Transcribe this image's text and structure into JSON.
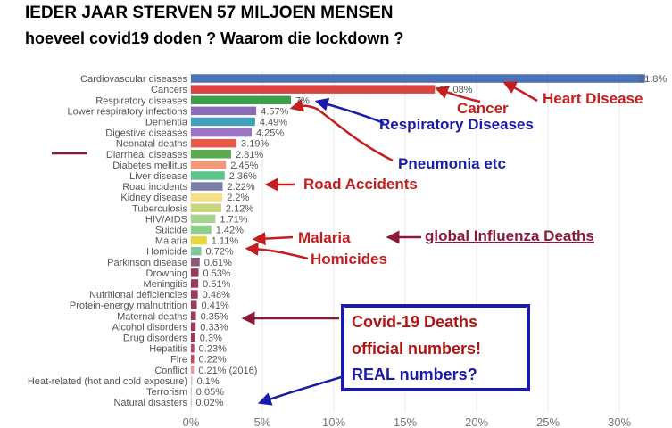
{
  "headline": {
    "line1": "IEDER JAAR STERVEN 57 MILJOEN MENSEN",
    "line2": "hoeveel covid19 doden ? Waarom die lockdown ?"
  },
  "chart_data": {
    "type": "bar",
    "orientation": "horizontal",
    "xlim": [
      0,
      33
    ],
    "x_ticks": [
      "0%",
      "5%",
      "10%",
      "15%",
      "20%",
      "25%",
      "30%"
    ],
    "grid": "vertical",
    "categories": [
      "Cardiovascular diseases",
      "Cancers",
      "Respiratory diseases",
      "Lower respiratory infections",
      "Dementia",
      "Digestive diseases",
      "Neonatal deaths",
      "Diarrheal diseases",
      "Diabetes mellitus",
      "Liver disease",
      "Road incidents",
      "Kidney disease",
      "Tuberculosis",
      "HIV/AIDS",
      "Suicide",
      "Malaria",
      "Homicide",
      "Parkinson disease",
      "Drowning",
      "Meningitis",
      "Nutritional deficiencies",
      "Protein-energy malnutrition",
      "Maternal deaths",
      "Alcohol disorders",
      "Drug disorders",
      "Hepatitis",
      "Fire",
      "Conflict",
      "Heat-related (hot and cold exposure)",
      "Terrorism",
      "Natural disasters"
    ],
    "values": [
      31.8,
      17.08,
      7,
      4.57,
      4.49,
      4.25,
      3.19,
      2.81,
      2.45,
      2.36,
      2.22,
      2.2,
      2.12,
      1.71,
      1.42,
      1.11,
      0.72,
      0.61,
      0.53,
      0.51,
      0.48,
      0.41,
      0.35,
      0.33,
      0.3,
      0.23,
      0.22,
      0.21,
      0.1,
      0.05,
      0.02
    ],
    "value_labels": [
      "31.8%",
      "17.08%",
      "7%",
      "4.57%",
      "4.49%",
      "4.25%",
      "3.19%",
      "2.81%",
      "2.45%",
      "2.36%",
      "2.22%",
      "2.2%",
      "2.12%",
      "1.71%",
      "1.42%",
      "1.11%",
      "0.72%",
      "0.61%",
      "0.53%",
      "0.51%",
      "0.48%",
      "0.41%",
      "0.35%",
      "0.33%",
      "0.3%",
      "0.23%",
      "0.22%",
      "0.21% (2016)",
      "0.1%",
      "0.05%",
      "0.02%"
    ],
    "colors": [
      "#4a72b8",
      "#d64541",
      "#3f9e4d",
      "#8c6bb8",
      "#42a0b8",
      "#9b74c2",
      "#e85a48",
      "#5cab4a",
      "#f0997a",
      "#5ec48c",
      "#7a7fa8",
      "#f4e08a",
      "#c8d67c",
      "#a6d28e",
      "#8ccf8a",
      "#e6d83c",
      "#7dc89a",
      "#8a5a7a",
      "#9a3a58",
      "#9a3a5c",
      "#9a3a5c",
      "#9a3a5c",
      "#9a3a5c",
      "#9a3a5c",
      "#9a3a5c",
      "#b04a6a",
      "#c84a5a",
      "#e0a0a8",
      "#cccccc",
      "#cccccc",
      "#cccccc"
    ]
  },
  "annotations": {
    "heart_disease": "Heart Disease",
    "cancer": "Cancer",
    "respiratory": "Respiratory Diseases",
    "pneumonia": "Pneumonia etc",
    "road_accidents": "Road Accidents",
    "malaria": "Malaria",
    "influenza": "global Influenza Deaths",
    "homicides": "Homicides",
    "covid_line1": "Covid-19 Deaths",
    "covid_line2": "official numbers!",
    "covid_line3": "REAL numbers?",
    "red_color": "#c41e1e",
    "blue_color": "#1a1aa8",
    "maroon_color": "#8a1a3a"
  }
}
